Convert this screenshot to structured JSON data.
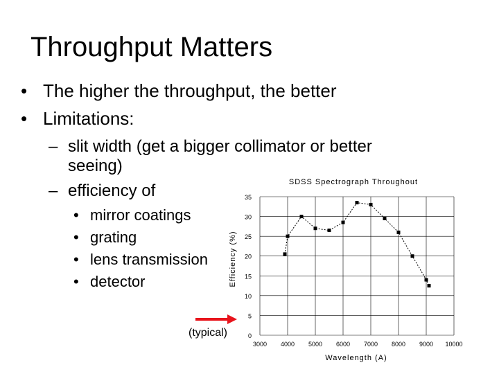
{
  "slide": {
    "title": "Throughput Matters",
    "bullets": [
      {
        "mark": "•",
        "text": "The higher the throughput, the better"
      },
      {
        "mark": "•",
        "text": "Limitations:"
      }
    ],
    "sub_bullets": [
      {
        "dash": "–",
        "text": "slit width (get a bigger collimator or better seeing)"
      },
      {
        "dash": "–",
        "text": "efficiency of"
      }
    ],
    "items": [
      {
        "dot": "•",
        "text": "mirror coatings"
      },
      {
        "dot": "•",
        "text": "grating"
      },
      {
        "dot": "•",
        "text": "lens transmission"
      },
      {
        "dot": "•",
        "text": "detector"
      }
    ],
    "typical_label": "(typical)",
    "arrow_color": "#e8141c"
  },
  "chart_data": {
    "type": "line",
    "title": "SDSS Spectrograph Throughout",
    "xlabel": "Wavelength (A)",
    "ylabel": "Efficiency (%)",
    "xlim": [
      3000,
      10000
    ],
    "ylim": [
      0,
      35
    ],
    "xticks": [
      3000,
      4000,
      5000,
      6000,
      7000,
      8000,
      9000,
      10000
    ],
    "yticks": [
      0,
      5,
      10,
      15,
      20,
      25,
      30,
      35
    ],
    "grid": true,
    "series": [
      {
        "x": [
          3900,
          4000,
          4500,
          5000,
          5500,
          6000,
          6500,
          7000,
          7500,
          8000,
          8500,
          9000,
          9100
        ],
        "y": [
          20.5,
          25,
          30,
          27,
          26.5,
          28.5,
          33.5,
          33,
          29.5,
          26,
          20,
          14,
          12.5
        ]
      }
    ]
  }
}
